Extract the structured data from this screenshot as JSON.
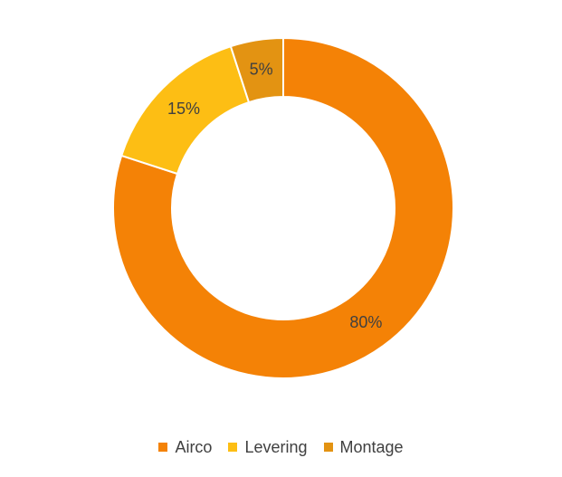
{
  "chart_data": {
    "type": "pie",
    "variant": "donut",
    "title": "",
    "categories": [
      "Airco",
      "Levering",
      "Montage"
    ],
    "values": [
      80,
      15,
      5
    ],
    "data_labels": [
      "80%",
      "15%",
      "5%"
    ],
    "colors": [
      "#F48206",
      "#FDBE14",
      "#E39312"
    ],
    "legend_position": "bottom"
  },
  "legend": {
    "items": [
      {
        "label": "Airco",
        "color": "#F48206"
      },
      {
        "label": "Levering",
        "color": "#FDBE14"
      },
      {
        "label": "Montage",
        "color": "#E39312"
      }
    ]
  }
}
